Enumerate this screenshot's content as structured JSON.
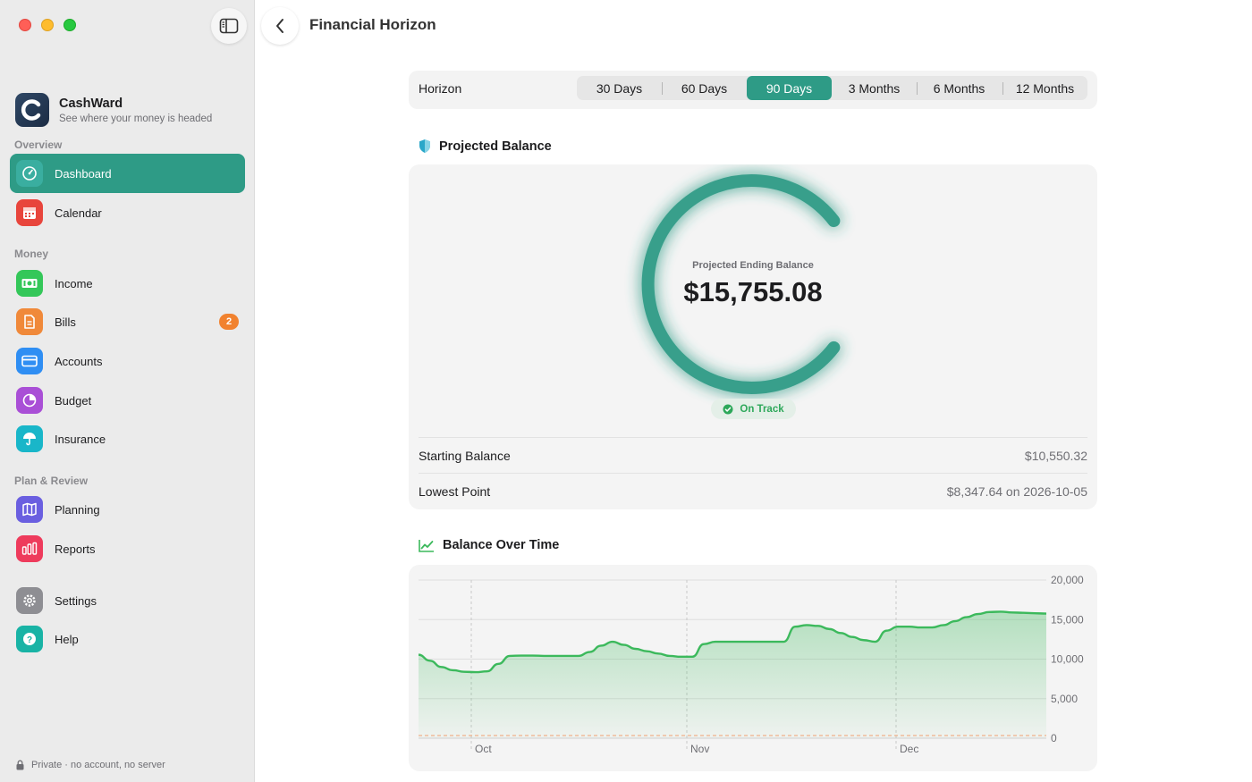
{
  "window": {
    "title": "Financial Horizon"
  },
  "brand": {
    "name": "CashWard",
    "tagline": "See where your money is headed"
  },
  "sidebar": {
    "sections": [
      {
        "label": "Overview"
      },
      {
        "label": "Money"
      },
      {
        "label": "Plan & Review"
      }
    ],
    "items": [
      {
        "label": "Dashboard",
        "icon": "gauge-icon",
        "active": true,
        "color": "#2e9b86"
      },
      {
        "label": "Calendar",
        "icon": "calendar-icon",
        "color": "#e8453c"
      },
      {
        "label": "Income",
        "icon": "cash-icon",
        "color": "#34c759"
      },
      {
        "label": "Bills",
        "icon": "document-icon",
        "badge": "2",
        "color": "#f0893a"
      },
      {
        "label": "Accounts",
        "icon": "credit-card-icon",
        "color": "#2f8ef3"
      },
      {
        "label": "Budget",
        "icon": "pie-chart-icon",
        "color": "#a94fd6"
      },
      {
        "label": "Insurance",
        "icon": "umbrella-icon",
        "color": "#19b6c9"
      },
      {
        "label": "Planning",
        "icon": "map-icon",
        "color": "#6a5fe0"
      },
      {
        "label": "Reports",
        "icon": "bar-chart-icon",
        "color": "#ee3b5c"
      },
      {
        "label": "Settings",
        "icon": "gear-icon",
        "color": "#8e8e93"
      },
      {
        "label": "Help",
        "icon": "question-icon",
        "color": "#19b3a5"
      }
    ],
    "footer": "Private · no account, no server"
  },
  "horizon": {
    "label": "Horizon",
    "options": [
      "30 Days",
      "60 Days",
      "90 Days",
      "3 Months",
      "6 Months",
      "12 Months"
    ],
    "selected": "90 Days"
  },
  "projected": {
    "title": "Projected Balance",
    "ring_label": "Projected Ending Balance",
    "ring_value": "$15,755.08",
    "status": "On Track",
    "rows": [
      {
        "label": "Starting Balance",
        "value": "$10,550.32"
      },
      {
        "label": "Lowest Point",
        "value": "$8,347.64 on 2026-10-05"
      }
    ]
  },
  "balance_chart": {
    "title": "Balance Over Time"
  },
  "colors": {
    "accent": "#2e9b86",
    "chart_line": "#3cb95c",
    "zero_line": "#f0a070"
  },
  "chart_data": {
    "type": "area",
    "x_tick_labels": [
      "Oct",
      "Nov",
      "Dec"
    ],
    "y_tick_labels": [
      "0",
      "5,000",
      "10,000",
      "15,000",
      "20,000"
    ],
    "ylim": [
      0,
      20000
    ],
    "grid": true,
    "series": [
      {
        "values": [
          10550,
          9800,
          9000,
          8600,
          8400,
          8350,
          8450,
          9400,
          10400,
          10450,
          10450,
          10400,
          10400,
          10400,
          10400,
          10900,
          11700,
          12200,
          11800,
          11300,
          11000,
          10700,
          10400,
          10300,
          10300,
          11900,
          12200,
          12200,
          12200,
          12200,
          12200,
          12200,
          12200,
          14100,
          14300,
          14200,
          13800,
          13300,
          12800,
          12400,
          12200,
          13600,
          14100,
          14100,
          14000,
          14000,
          14300,
          14800,
          15300,
          15700,
          15950,
          16000,
          15900,
          15850,
          15800,
          15755
        ]
      }
    ]
  }
}
